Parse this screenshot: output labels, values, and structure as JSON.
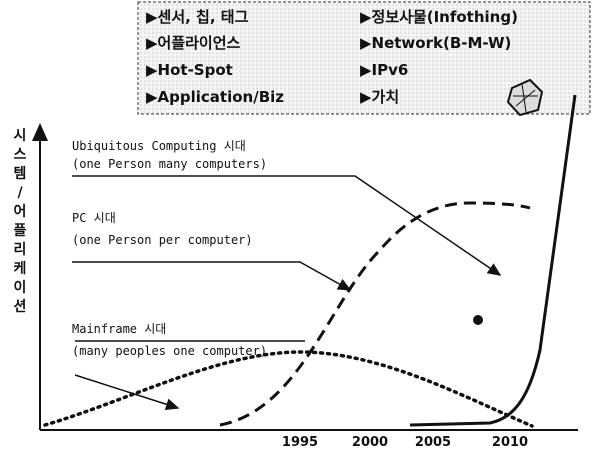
{
  "info_box": {
    "left": [
      "▶센서, 칩, 태그",
      "▶어플라이언스",
      "▶Hot-Spot",
      "▶Application/Biz"
    ],
    "right": [
      "▶정보사물(Infothing)",
      "▶Network(B-M-W)",
      "▶IPv6",
      "▶가치"
    ]
  },
  "y_axis_label": [
    "시",
    "스",
    "템",
    "/",
    "어",
    "플",
    "리",
    "케",
    "이",
    "션"
  ],
  "annotations": [
    {
      "title": "Ubiquitous Computing 시대",
      "subtitle": "(one Person many computers)"
    },
    {
      "title": "PC 시대",
      "subtitle": "(one Person per computer)"
    },
    {
      "title": "Mainframe 시대",
      "subtitle": "(many peoples one computer)"
    }
  ],
  "x_labels": [
    "1995",
    "2000",
    "2005",
    "2010"
  ]
}
